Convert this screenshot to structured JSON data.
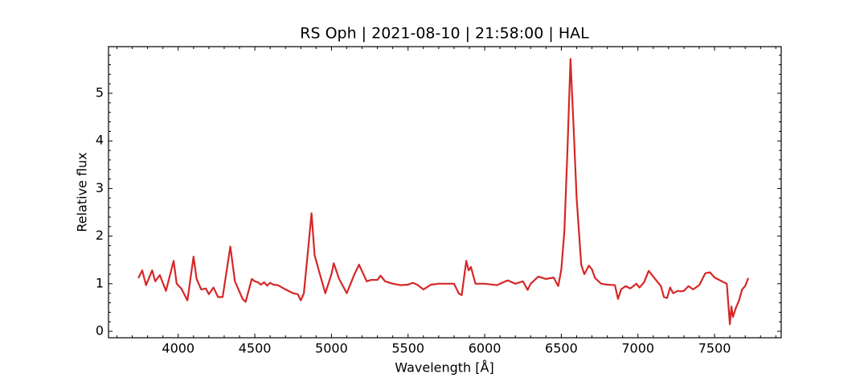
{
  "chart_data": {
    "type": "line",
    "title": "RS Oph | 2021-08-10 | 21:58:00 | HAL",
    "x_label": "Wavelength [Å]",
    "y_label": "Relative flux",
    "xlim": [
      3545,
      7935
    ],
    "ylim": [
      -0.135,
      5.98
    ],
    "xticks": [
      4000,
      4500,
      5000,
      5500,
      6000,
      6500,
      7000,
      7500
    ],
    "yticks": [
      0,
      1,
      2,
      3,
      4,
      5
    ],
    "xticks_minor": [
      3600,
      3700,
      3800,
      3900,
      4100,
      4200,
      4300,
      4400,
      4600,
      4700,
      4800,
      4900,
      5100,
      5200,
      5300,
      5400,
      5600,
      5700,
      5800,
      5900,
      6100,
      6200,
      6300,
      6400,
      6600,
      6700,
      6800,
      6900,
      7100,
      7200,
      7300,
      7400,
      7600,
      7700,
      7800,
      7900
    ],
    "yticks_minor": [
      0.2,
      0.4,
      0.6,
      0.8,
      1.2,
      1.4,
      1.6,
      1.8,
      2.2,
      2.4,
      2.6,
      2.8,
      3.2,
      3.4,
      3.6,
      3.8,
      4.2,
      4.4,
      4.6,
      4.8,
      5.2,
      5.4,
      5.6,
      5.8
    ],
    "series": [
      {
        "color": "#d62728",
        "x": [
          3740,
          3765,
          3790,
          3830,
          3850,
          3880,
          3920,
          3970,
          3990,
          4020,
          4060,
          4100,
          4120,
          4150,
          4180,
          4200,
          4230,
          4260,
          4290,
          4340,
          4370,
          4420,
          4440,
          4480,
          4500,
          4520,
          4540,
          4560,
          4580,
          4600,
          4620,
          4650,
          4700,
          4750,
          4780,
          4800,
          4820,
          4850,
          4870,
          4890,
          4920,
          4960,
          5000,
          5015,
          5050,
          5100,
          5150,
          5180,
          5230,
          5260,
          5300,
          5320,
          5350,
          5400,
          5450,
          5500,
          5530,
          5560,
          5600,
          5650,
          5700,
          5800,
          5830,
          5850,
          5880,
          5895,
          5910,
          5940,
          6000,
          6080,
          6100,
          6150,
          6200,
          6250,
          6280,
          6300,
          6350,
          6400,
          6450,
          6480,
          6500,
          6520,
          6540,
          6560,
          6580,
          6600,
          6630,
          6650,
          6680,
          6700,
          6720,
          6760,
          6800,
          6850,
          6870,
          6890,
          6920,
          6950,
          6990,
          7010,
          7040,
          7070,
          7100,
          7150,
          7170,
          7190,
          7210,
          7230,
          7260,
          7280,
          7300,
          7330,
          7360,
          7400,
          7440,
          7470,
          7500,
          7560,
          7580,
          7600,
          7610,
          7620,
          7640,
          7660,
          7680,
          7700,
          7720
        ],
        "values": [
          1.12,
          1.28,
          0.97,
          1.28,
          1.05,
          1.18,
          0.85,
          1.48,
          1.0,
          0.9,
          0.65,
          1.57,
          1.1,
          0.88,
          0.9,
          0.78,
          0.92,
          0.72,
          0.72,
          1.78,
          1.05,
          0.68,
          0.62,
          1.1,
          1.05,
          1.03,
          0.98,
          1.03,
          0.96,
          1.02,
          0.98,
          0.97,
          0.88,
          0.8,
          0.78,
          0.65,
          0.8,
          1.8,
          2.48,
          1.6,
          1.25,
          0.8,
          1.2,
          1.43,
          1.1,
          0.8,
          1.2,
          1.4,
          1.05,
          1.08,
          1.08,
          1.17,
          1.05,
          1.0,
          0.97,
          0.98,
          1.02,
          0.98,
          0.88,
          0.98,
          1.0,
          1.0,
          0.8,
          0.76,
          1.48,
          1.28,
          1.35,
          1.0,
          1.0,
          0.97,
          1.0,
          1.07,
          1.0,
          1.05,
          0.87,
          1.0,
          1.15,
          1.1,
          1.13,
          0.95,
          1.3,
          2.1,
          3.8,
          5.72,
          4.3,
          2.8,
          1.4,
          1.2,
          1.38,
          1.3,
          1.12,
          1.0,
          0.98,
          0.97,
          0.68,
          0.88,
          0.95,
          0.9,
          1.0,
          0.92,
          1.03,
          1.27,
          1.15,
          0.95,
          0.72,
          0.7,
          0.92,
          0.8,
          0.85,
          0.84,
          0.85,
          0.95,
          0.88,
          0.97,
          1.22,
          1.24,
          1.13,
          1.03,
          1.0,
          0.15,
          0.52,
          0.3,
          0.5,
          0.65,
          0.88,
          0.95,
          1.12
        ]
      }
    ]
  }
}
